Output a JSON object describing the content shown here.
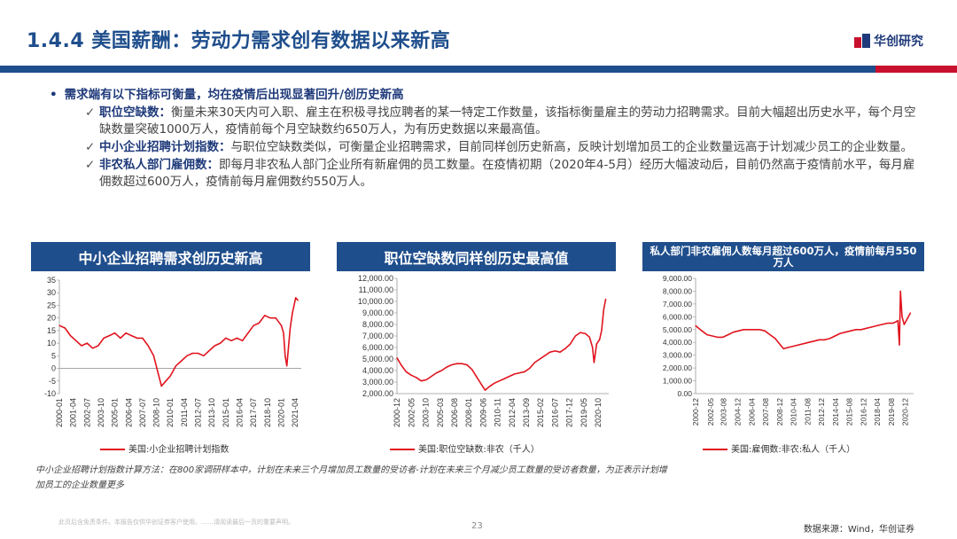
{
  "header": {
    "title": "1.4.4 美国薪酬：劳动力需求创有数据以来新高",
    "logo_text": "华创研究"
  },
  "bullets": {
    "main": "需求端有以下指标可衡量，均在疫情后出现显著回升/创历史新高",
    "items": [
      {
        "label": "职位空缺数：",
        "text": "衡量未来30天内可入职、雇主在积极寻找应聘者的某一特定工作数量，该指标衡量雇主的劳动力招聘需求。目前大幅超出历史水平，每个月空缺数量突破1000万人，疫情前每个月空缺数约650万人，为有历史数据以来最高值。"
      },
      {
        "label": "中小企业招聘计划指数：",
        "text": "与职位空缺数类似，可衡量企业招聘需求，目前同样创历史新高，反映计划增加员工的企业数量远高于计划减少员工的企业数量。"
      },
      {
        "label": "非农私人部门雇佣数：",
        "text": "即每月非农私人部门企业所有新雇佣的员工数量。在疫情初期（2020年4-5月）经历大幅波动后，目前仍然高于疫情前水平，每月雇佣数超过600万人，疫情前每月雇佣数约550万人。"
      }
    ]
  },
  "chart_heads": [
    "中小企业招聘需求创历史新高",
    "职位空缺数同样创历史最高值",
    "私人部门非农雇佣人数每月超过600万人，疫情前每月550万人"
  ],
  "footer": {
    "note": "中小企业招聘计划指数计算方法：在800家调研样本中，计划在未来三个月增加员工数量的受访者-计划在未来三个月减少员工数量的受访者数量，为正表示计划增加员工的企业数量更多",
    "disclaimer": "此页后含免责条件。本报告仅供华创证券客户使用。……请阅读最后一页的重要声明。",
    "page_number": "23",
    "source": "数据来源：Wind，华创证券"
  },
  "chart_data": [
    {
      "type": "line",
      "title": "中小企业招聘需求创历史新高",
      "ylim": [
        -10,
        35
      ],
      "yticks": [
        "35",
        "30",
        "25",
        "20",
        "15",
        "10",
        "5",
        "0",
        "-5",
        "-10"
      ],
      "xticks": [
        "2000-01",
        "2001-04",
        "2002-07",
        "2003-10",
        "2005-01",
        "2006-04",
        "2007-07",
        "2008-10",
        "2010-01",
        "2011-04",
        "2012-07",
        "2013-10",
        "2015-01",
        "2016-04",
        "2017-07",
        "2018-10",
        "2020-01",
        "2021-04"
      ],
      "series": [
        {
          "name": "美国:小企业招聘计划指数",
          "color": "#e0141e",
          "x": [
            2000.0,
            2000.5,
            2001.0,
            2001.5,
            2002.0,
            2002.5,
            2003.0,
            2003.5,
            2004.0,
            2004.5,
            2005.0,
            2005.5,
            2006.0,
            2006.5,
            2007.0,
            2007.5,
            2008.0,
            2008.5,
            2008.9,
            2009.2,
            2009.6,
            2010.0,
            2010.5,
            2011.0,
            2011.5,
            2012.0,
            2012.5,
            2013.0,
            2013.5,
            2014.0,
            2014.5,
            2015.0,
            2015.5,
            2016.0,
            2016.5,
            2017.0,
            2017.5,
            2018.0,
            2018.5,
            2019.0,
            2019.5,
            2020.0,
            2020.2,
            2020.35,
            2020.5,
            2020.8,
            2021.0,
            2021.3,
            2021.5
          ],
          "values": [
            17,
            16,
            13,
            11,
            9,
            10,
            8,
            9,
            12,
            13,
            14,
            12,
            14,
            13,
            12,
            12,
            9,
            5,
            -2,
            -7,
            -5,
            -3,
            1,
            3,
            5,
            6,
            6,
            5,
            7,
            9,
            10,
            12,
            11,
            12,
            11,
            14,
            17,
            18,
            21,
            20,
            20,
            17,
            14,
            5,
            1,
            16,
            22,
            28,
            27
          ]
        }
      ]
    },
    {
      "type": "line",
      "title": "职位空缺数同样创历史最高值",
      "ylim": [
        2000,
        12000
      ],
      "yticks": [
        "12,000.00",
        "11,000.00",
        "10,000.00",
        "9,000.00",
        "8,000.00",
        "7,000.00",
        "6,000.00",
        "5,000.00",
        "4,000.00",
        "3,000.00",
        "2,000.00"
      ],
      "xticks": [
        "2000-12",
        "2002-05",
        "2003-10",
        "2005-03",
        "2006-08",
        "2008-01",
        "2009-06",
        "2010-11",
        "2012-04",
        "2013-09",
        "2015-02",
        "2016-07",
        "2017-12",
        "2019-05",
        "2020-10"
      ],
      "series": [
        {
          "name": "美国:职位空缺数:非农（千人）",
          "color": "#e0141e",
          "x": [
            2000.9,
            2001.3,
            2001.8,
            2002.3,
            2002.8,
            2003.3,
            2003.8,
            2004.3,
            2004.8,
            2005.3,
            2005.8,
            2006.3,
            2006.8,
            2007.3,
            2007.8,
            2008.3,
            2008.8,
            2009.3,
            2009.6,
            2010.0,
            2010.5,
            2011.0,
            2011.5,
            2012.0,
            2012.5,
            2013.0,
            2013.5,
            2014.0,
            2014.5,
            2015.0,
            2015.5,
            2016.0,
            2016.5,
            2017.0,
            2017.5,
            2018.0,
            2018.5,
            2019.0,
            2019.5,
            2019.9,
            2020.2,
            2020.35,
            2020.6,
            2020.9,
            2021.1,
            2021.3,
            2021.5
          ],
          "values": [
            5100,
            4500,
            3900,
            3600,
            3400,
            3100,
            3200,
            3500,
            3800,
            4000,
            4300,
            4500,
            4600,
            4600,
            4500,
            4100,
            3400,
            2700,
            2300,
            2600,
            2900,
            3100,
            3300,
            3500,
            3700,
            3800,
            3900,
            4200,
            4700,
            5000,
            5300,
            5600,
            5700,
            5600,
            5900,
            6300,
            7000,
            7300,
            7200,
            6900,
            6000,
            4700,
            6300,
            6700,
            7500,
            9300,
            10200
          ]
        }
      ]
    },
    {
      "type": "line",
      "title": "私人部门非农雇佣人数每月超过600万人，疫情前每月550万人",
      "ylim": [
        0,
        9000
      ],
      "yticks": [
        "9,000.00",
        "8,000.00",
        "7,000.00",
        "6,000.00",
        "5,000.00",
        "4,000.00",
        "3,000.00",
        "2,000.00",
        "1,000.00",
        "0.00"
      ],
      "xticks": [
        "2000-12",
        "2002-05",
        "2003-08",
        "2004-12",
        "2006-04",
        "2007-08",
        "2008-12",
        "2010-04",
        "2011-08",
        "2012-12",
        "2014-04",
        "2015-08",
        "2016-12",
        "2018-04",
        "2019-08",
        "2020-12"
      ],
      "series": [
        {
          "name": "美国:雇佣数:非农:私人（千人）",
          "color": "#e0141e",
          "x": [
            2000.9,
            2001.5,
            2002.0,
            2002.5,
            2003.0,
            2003.5,
            2004.0,
            2004.5,
            2005.0,
            2005.5,
            2006.0,
            2006.5,
            2007.0,
            2007.5,
            2008.0,
            2008.5,
            2008.9,
            2009.3,
            2009.7,
            2010.2,
            2010.7,
            2011.2,
            2011.7,
            2012.2,
            2012.7,
            2013.2,
            2013.7,
            2014.2,
            2014.7,
            2015.2,
            2015.7,
            2016.2,
            2016.7,
            2017.2,
            2017.7,
            2018.2,
            2018.7,
            2019.2,
            2019.7,
            2020.0,
            2020.2,
            2020.35,
            2020.45,
            2020.6,
            2020.8,
            2021.0,
            2021.2,
            2021.4
          ],
          "values": [
            5300,
            4900,
            4600,
            4500,
            4400,
            4400,
            4600,
            4800,
            4900,
            5000,
            5000,
            5000,
            5000,
            4900,
            4600,
            4300,
            3900,
            3500,
            3600,
            3700,
            3800,
            3900,
            4000,
            4100,
            4200,
            4200,
            4300,
            4500,
            4700,
            4800,
            4900,
            5000,
            5000,
            5100,
            5200,
            5300,
            5400,
            5500,
            5500,
            5600,
            5700,
            3800,
            8000,
            6000,
            5400,
            5700,
            6000,
            6300
          ]
        }
      ]
    }
  ]
}
